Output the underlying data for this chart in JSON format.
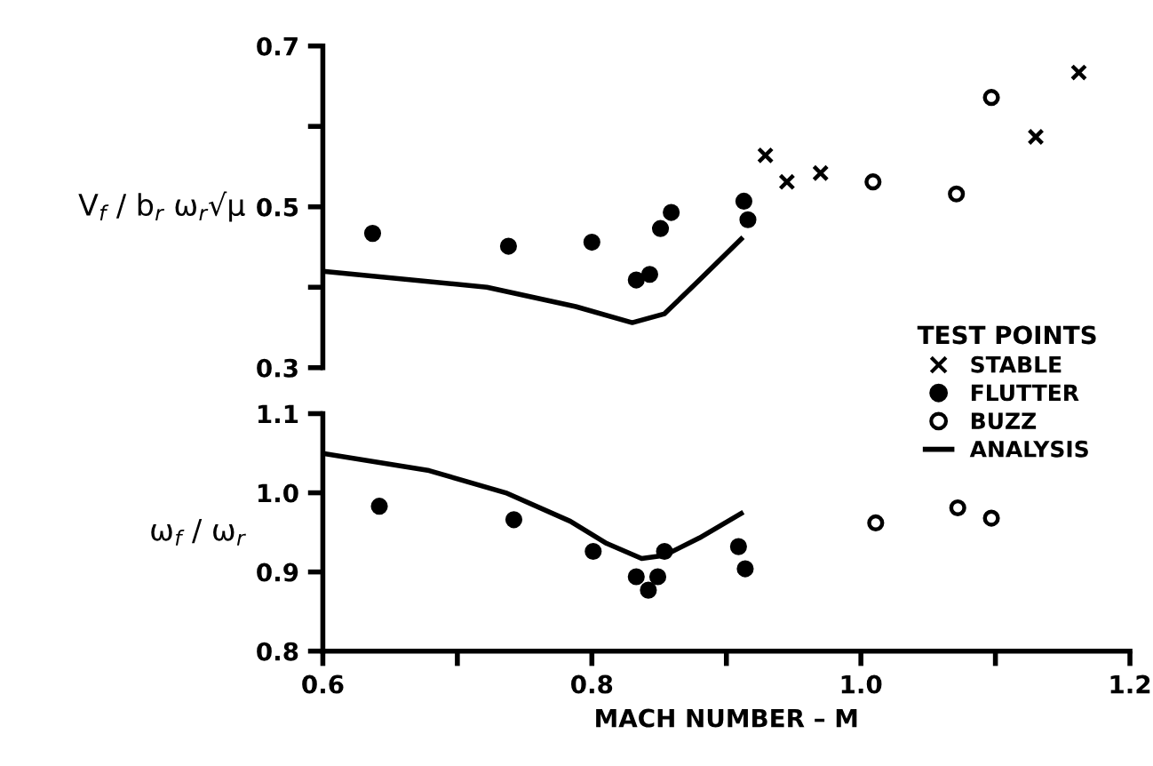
{
  "chart_data": [
    {
      "type": "scatter",
      "ylabel": "V$_{f}$ / b$_{r}$ ω$_{r}$√μ",
      "legend_title": "TEST POINTS",
      "legend": "right",
      "grid": false,
      "tick_labels": "y",
      "xlim": [
        0.6,
        1.2
      ],
      "ylim": [
        0.3,
        0.7
      ],
      "yticks": [
        0.3,
        {
          "value": 0.4,
          "label": null
        },
        0.5,
        {
          "value": 0.6,
          "label": null
        },
        0.7
      ],
      "series": [
        {
          "name": "STABLE",
          "marker": "cross",
          "color": "#000000",
          "x": [
            0.929,
            0.945,
            0.97,
            1.13,
            1.162
          ],
          "values": [
            0.564,
            0.531,
            0.542,
            0.587,
            0.667
          ]
        },
        {
          "name": "FLUTTER",
          "marker": "circle",
          "color": "#000000",
          "x": [
            0.637,
            0.738,
            0.8,
            0.833,
            0.843,
            0.851,
            0.859,
            0.913,
            0.916
          ],
          "values": [
            0.467,
            0.451,
            0.456,
            0.409,
            0.416,
            0.473,
            0.493,
            0.507,
            0.484
          ]
        },
        {
          "name": "BUZZ",
          "marker": "circle",
          "color": "#ffffff",
          "x": [
            1.009,
            1.071,
            1.097
          ],
          "values": [
            0.531,
            0.516,
            0.636
          ]
        },
        {
          "name": "ANALYSIS",
          "type": "line",
          "line_style": "solid",
          "color": "#000000",
          "x": [
            0.6,
            0.722,
            0.788,
            0.83,
            0.854,
            0.88,
            0.911
          ],
          "values": [
            0.42,
            0.4,
            0.376,
            0.356,
            0.367,
            0.409,
            0.46
          ]
        }
      ]
    },
    {
      "type": "scatter",
      "xlabel": "MACH NUMBER – M",
      "ylabel": "ω$_{f}$ / ω$_{r}$",
      "grid": false,
      "xlim": [
        0.6,
        1.2
      ],
      "xticks": [
        0.6,
        {
          "value": 0.7,
          "label": null
        },
        0.8,
        {
          "value": 0.9,
          "label": null
        },
        {
          "value": 1.0,
          "label": "1.0"
        },
        {
          "value": 1.1,
          "label": null
        },
        1.2
      ],
      "ylim": [
        0.8,
        1.1
      ],
      "yticks": [
        0.8,
        0.9,
        {
          "value": 1.0,
          "label": "1.0"
        },
        1.1
      ],
      "series": [
        {
          "marker": "circle",
          "color": "#000000",
          "x": [
            0.642,
            0.742,
            0.801,
            0.833,
            0.842,
            0.849,
            0.854,
            0.909,
            0.914
          ],
          "values": [
            0.983,
            0.966,
            0.926,
            0.894,
            0.877,
            0.894,
            0.926,
            0.932,
            0.904
          ]
        },
        {
          "marker": "circle",
          "color": "#ffffff",
          "x": [
            1.011,
            1.072,
            1.097
          ],
          "values": [
            0.962,
            0.981,
            0.968
          ]
        },
        {
          "type": "line",
          "line_style": "solid",
          "color": "#000000",
          "x": [
            0.603,
            0.679,
            0.736,
            0.784,
            0.811,
            0.837,
            0.854,
            0.88,
            0.911
          ],
          "values": [
            1.049,
            1.028,
            1.0,
            0.964,
            0.936,
            0.917,
            0.921,
            0.943,
            0.974
          ]
        }
      ]
    }
  ]
}
